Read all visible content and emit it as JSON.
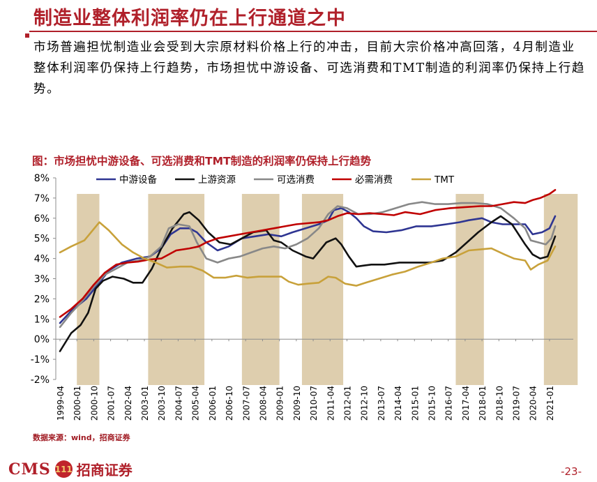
{
  "title": "制造业整体利润率仍在上行通道之中",
  "summary": "市场普遍担忧制造业会受到大宗原材料价格上行的冲击，目前大宗价格冲高回落，4月制造业整体利润率仍保持上行趋势，市场担忧中游设备、可选消费和TMT制造的利润率仍保持上行趋势。",
  "figure_caption": "图：市场担忧中游设备、可选消费和TMT制造的利润率仍保持上行趋势",
  "source": "数据来源：wind，招商证券",
  "footer": {
    "logo_text": "CMS",
    "logo_mark": "111",
    "company": "招商证券",
    "page": "-23-"
  },
  "colors": {
    "accent": "#b0202a",
    "shade": "#d8c6a0"
  },
  "chart_data": {
    "type": "line",
    "ylim": [
      -2,
      8
    ],
    "y_ticks": [
      "8%",
      "7%",
      "6%",
      "5%",
      "4%",
      "3%",
      "2%",
      "1%",
      "0%",
      "-1%",
      "-2%"
    ],
    "x_start": "1999-04",
    "x_end": "2021-04",
    "x_tick_labels": [
      "1999-04",
      "2000-01",
      "2000-10",
      "2001-07",
      "2002-04",
      "2003-01",
      "2003-10",
      "2004-07",
      "2005-04",
      "2006-01",
      "2006-10",
      "2007-07",
      "2008-04",
      "2009-01",
      "2009-10",
      "2010-07",
      "2011-04",
      "2012-01",
      "2012-10",
      "2013-07",
      "2014-04",
      "2015-01",
      "2015-10",
      "2016-07",
      "2017-04",
      "2018-01",
      "2018-10",
      "2019-07",
      "2020-04",
      "2021-01"
    ],
    "shaded_periods": [
      [
        "2000-01",
        "2001-01"
      ],
      [
        "2003-03",
        "2005-09"
      ],
      [
        "2007-05",
        "2009-01"
      ],
      [
        "2010-01",
        "2011-11"
      ],
      [
        "2016-11",
        "2018-02"
      ],
      [
        "2020-10",
        "2022-04"
      ]
    ],
    "series": [
      {
        "name": "中游设备",
        "color": "#2e3592",
        "x": [
          "1999-04",
          "1999-10",
          "2000-06",
          "2001-01",
          "2001-06",
          "2002-01",
          "2002-09",
          "2003-04",
          "2003-10",
          "2004-03",
          "2004-08",
          "2005-01",
          "2005-05",
          "2005-10",
          "2006-04",
          "2006-10",
          "2007-05",
          "2007-12",
          "2008-07",
          "2009-02",
          "2009-08",
          "2010-03",
          "2010-10",
          "2011-03",
          "2011-06",
          "2011-10",
          "2012-02",
          "2012-06",
          "2012-10",
          "2013-03",
          "2013-10",
          "2014-06",
          "2015-02",
          "2015-10",
          "2016-06",
          "2017-01",
          "2017-06",
          "2018-01",
          "2018-06",
          "2018-12",
          "2019-06",
          "2019-12",
          "2020-04",
          "2020-09",
          "2021-01",
          "2021-04"
        ],
        "y": [
          0.8,
          1.4,
          2.0,
          2.8,
          3.4,
          3.8,
          4.0,
          4.1,
          4.5,
          5.2,
          5.5,
          5.5,
          5.3,
          4.8,
          4.4,
          4.6,
          5.0,
          5.1,
          5.2,
          5.1,
          5.3,
          5.5,
          5.7,
          5.9,
          6.4,
          6.5,
          6.3,
          6.0,
          5.6,
          5.35,
          5.3,
          5.4,
          5.6,
          5.6,
          5.7,
          5.8,
          5.9,
          6.0,
          5.8,
          5.7,
          5.7,
          5.7,
          5.2,
          5.3,
          5.5,
          6.1
        ]
      },
      {
        "name": "上游资源",
        "color": "#111111",
        "x": [
          "1999-04",
          "1999-10",
          "2000-03",
          "2000-07",
          "2000-11",
          "2001-03",
          "2001-08",
          "2002-02",
          "2002-07",
          "2002-12",
          "2003-05",
          "2003-10",
          "2004-04",
          "2004-10",
          "2005-01",
          "2005-06",
          "2005-11",
          "2006-05",
          "2006-11",
          "2007-05",
          "2007-11",
          "2008-06",
          "2008-10",
          "2009-02",
          "2009-08",
          "2010-03",
          "2010-07",
          "2011-02",
          "2011-07",
          "2011-10",
          "2012-02",
          "2012-06",
          "2012-10",
          "2013-02",
          "2013-09",
          "2014-05",
          "2015-01",
          "2015-09",
          "2016-04",
          "2016-11",
          "2017-05",
          "2017-11",
          "2018-06",
          "2018-11",
          "2019-05",
          "2019-12",
          "2020-04",
          "2020-08",
          "2020-12",
          "2021-02",
          "2021-04"
        ],
        "y": [
          -0.6,
          0.3,
          0.7,
          1.3,
          2.5,
          2.9,
          3.1,
          3.0,
          2.8,
          2.8,
          3.5,
          4.5,
          5.5,
          6.2,
          6.3,
          5.9,
          5.3,
          4.8,
          4.7,
          5.0,
          5.3,
          5.4,
          4.9,
          4.8,
          4.4,
          4.1,
          4.0,
          4.8,
          5.0,
          4.7,
          4.1,
          3.6,
          3.65,
          3.7,
          3.7,
          3.8,
          3.8,
          3.8,
          3.9,
          4.3,
          4.8,
          5.3,
          5.8,
          6.1,
          5.7,
          4.7,
          4.2,
          4.0,
          4.1,
          4.6,
          5.1
        ]
      },
      {
        "name": "可选消费",
        "color": "#888888",
        "x": [
          "1999-04",
          "1999-10",
          "2000-04",
          "2000-10",
          "2001-04",
          "2001-10",
          "2002-04",
          "2002-10",
          "2003-04",
          "2003-10",
          "2004-02",
          "2004-07",
          "2005-01",
          "2005-05",
          "2005-10",
          "2006-04",
          "2006-10",
          "2007-04",
          "2007-10",
          "2008-04",
          "2008-10",
          "2009-04",
          "2009-10",
          "2010-04",
          "2010-10",
          "2011-03",
          "2011-08",
          "2012-01",
          "2012-07",
          "2013-01",
          "2013-08",
          "2014-03",
          "2014-10",
          "2015-05",
          "2015-12",
          "2016-07",
          "2017-02",
          "2017-09",
          "2018-04",
          "2018-11",
          "2019-06",
          "2019-12",
          "2020-03",
          "2020-07",
          "2020-11",
          "2021-02",
          "2021-04"
        ],
        "y": [
          0.6,
          1.3,
          1.9,
          2.6,
          3.2,
          3.5,
          3.8,
          3.9,
          4.1,
          4.6,
          5.5,
          5.7,
          5.6,
          4.8,
          4.0,
          3.8,
          4.0,
          4.1,
          4.3,
          4.5,
          4.6,
          4.5,
          4.7,
          5.0,
          5.5,
          6.2,
          6.6,
          6.5,
          6.2,
          6.2,
          6.3,
          6.5,
          6.7,
          6.8,
          6.7,
          6.7,
          6.75,
          6.75,
          6.7,
          6.5,
          6.0,
          5.5,
          4.9,
          4.8,
          4.7,
          5.0,
          5.6
        ]
      },
      {
        "name": "必需消费",
        "color": "#c00000",
        "x": [
          "1999-04",
          "1999-10",
          "2000-04",
          "2000-10",
          "2001-04",
          "2001-10",
          "2002-04",
          "2002-10",
          "2003-04",
          "2003-10",
          "2004-06",
          "2005-01",
          "2005-06",
          "2005-10",
          "2006-04",
          "2006-10",
          "2007-04",
          "2007-10",
          "2008-04",
          "2008-10",
          "2009-04",
          "2009-10",
          "2010-04",
          "2010-10",
          "2011-03",
          "2011-08",
          "2012-01",
          "2012-07",
          "2013-01",
          "2013-08",
          "2014-02",
          "2014-08",
          "2015-04",
          "2015-12",
          "2016-08",
          "2017-04",
          "2017-12",
          "2018-06",
          "2018-12",
          "2019-06",
          "2019-12",
          "2020-04",
          "2020-08",
          "2021-01",
          "2021-04"
        ],
        "y": [
          1.1,
          1.5,
          2.0,
          2.7,
          3.3,
          3.7,
          3.8,
          3.85,
          3.95,
          4.0,
          4.4,
          4.5,
          4.6,
          4.8,
          5.0,
          5.1,
          5.2,
          5.3,
          5.4,
          5.5,
          5.6,
          5.7,
          5.75,
          5.8,
          5.9,
          6.1,
          6.25,
          6.2,
          6.25,
          6.2,
          6.15,
          6.3,
          6.2,
          6.4,
          6.5,
          6.55,
          6.6,
          6.6,
          6.7,
          6.8,
          6.75,
          6.9,
          7.0,
          7.2,
          7.4
        ]
      },
      {
        "name": "TMT",
        "color": "#c8a13a",
        "x": [
          "1999-04",
          "1999-10",
          "2000-05",
          "2001-01",
          "2001-06",
          "2002-01",
          "2002-07",
          "2003-01",
          "2003-07",
          "2004-01",
          "2004-08",
          "2005-02",
          "2005-08",
          "2006-02",
          "2006-08",
          "2007-02",
          "2007-08",
          "2008-02",
          "2008-08",
          "2009-02",
          "2009-06",
          "2009-11",
          "2010-04",
          "2010-10",
          "2011-03",
          "2011-07",
          "2011-12",
          "2012-06",
          "2012-11",
          "2013-06",
          "2014-01",
          "2014-08",
          "2015-03",
          "2015-10",
          "2016-04",
          "2016-11",
          "2017-06",
          "2017-12",
          "2018-06",
          "2019-01",
          "2019-06",
          "2019-12",
          "2020-03",
          "2020-07",
          "2020-12",
          "2021-04"
        ],
        "y": [
          4.3,
          4.6,
          4.9,
          5.8,
          5.4,
          4.7,
          4.3,
          4.0,
          3.8,
          3.55,
          3.6,
          3.6,
          3.4,
          3.05,
          3.05,
          3.15,
          3.05,
          3.1,
          3.1,
          3.1,
          2.85,
          2.7,
          2.75,
          2.8,
          3.1,
          3.05,
          2.75,
          2.65,
          2.8,
          3.0,
          3.2,
          3.35,
          3.6,
          3.8,
          4.0,
          4.1,
          4.4,
          4.45,
          4.5,
          4.2,
          4.0,
          3.9,
          3.45,
          3.7,
          3.9,
          4.6
        ]
      }
    ]
  }
}
